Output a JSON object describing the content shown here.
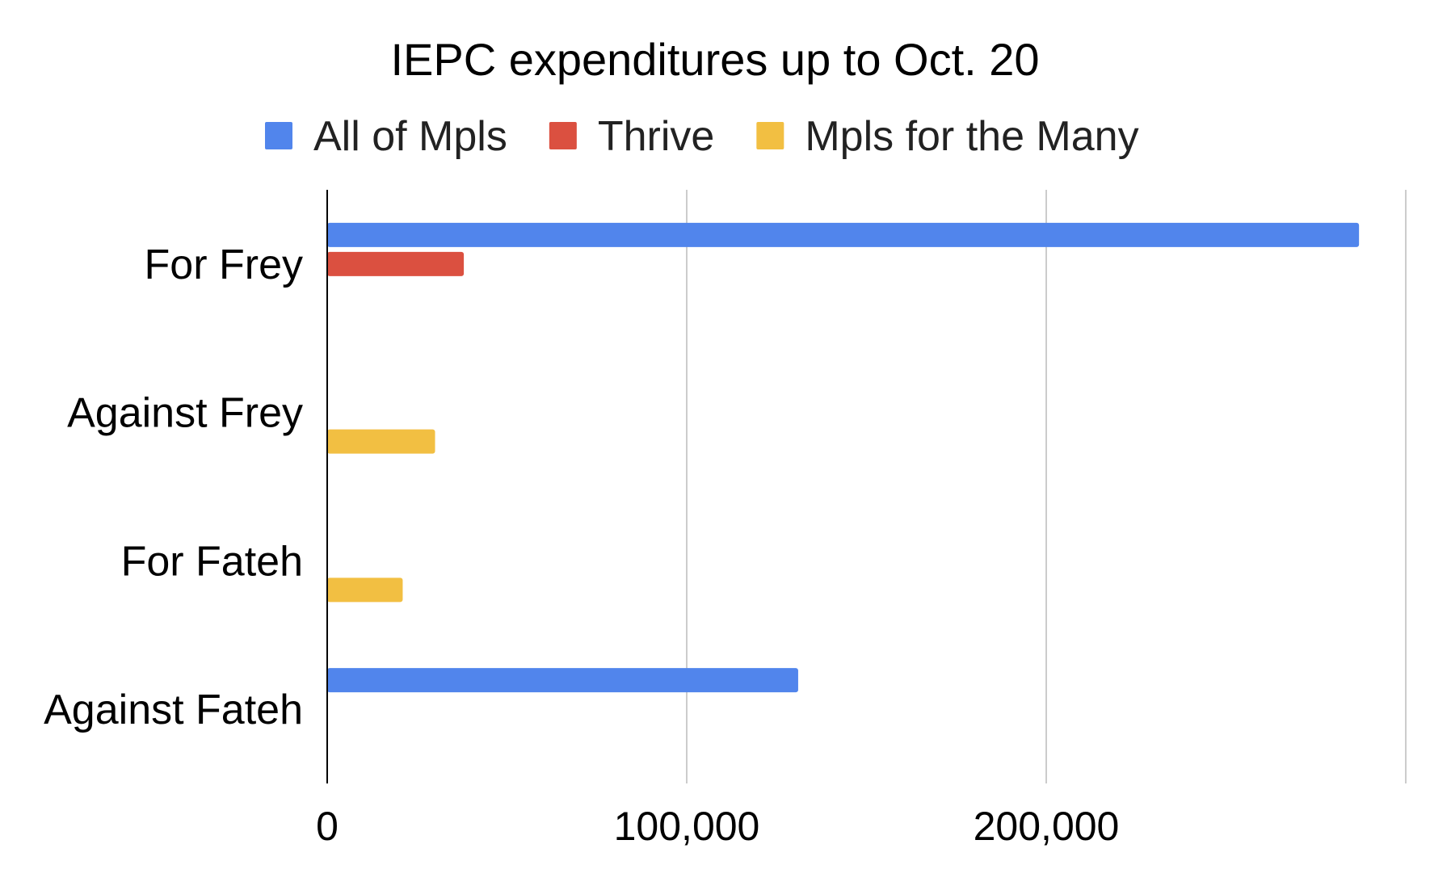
{
  "chart_data": {
    "type": "bar",
    "orientation": "horizontal",
    "title": "IEPC expenditures up to Oct. 20",
    "categories": [
      "For Frey",
      "Against Frey",
      "For Fateh",
      "Against Fateh"
    ],
    "series": [
      {
        "name": "All of Mpls",
        "color": "#5185ec",
        "values": [
          287000,
          0,
          0,
          131000
        ]
      },
      {
        "name": "Thrive",
        "color": "#db5040",
        "values": [
          38000,
          0,
          0,
          0
        ]
      },
      {
        "name": "Mpls for the Many",
        "color": "#f2bf42",
        "values": [
          0,
          30000,
          21000,
          0
        ]
      }
    ],
    "xlim": [
      0,
      300000
    ],
    "xticks": [
      0,
      100000,
      200000
    ],
    "xtick_labels": [
      "0",
      "100,000",
      "200,000"
    ],
    "grid": true,
    "legend": "top"
  }
}
